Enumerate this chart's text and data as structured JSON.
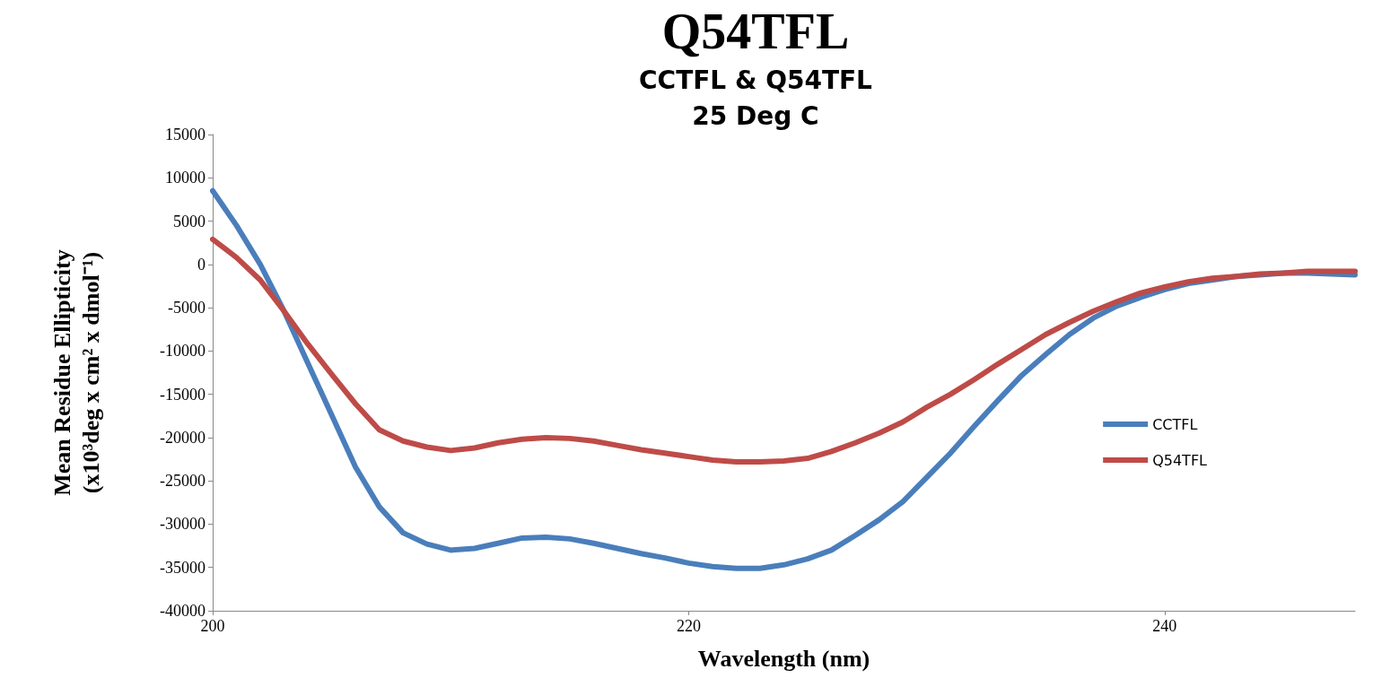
{
  "chart_data": {
    "type": "line",
    "title": "Q54TFL",
    "subtitle": "CCTFL & Q54TFL\n25 Deg C",
    "xlabel": "Wavelength (nm)",
    "ylabel": "Mean Residue Ellipticity\n(x10³deg x cm² x dmol⁻¹)",
    "x": [
      200,
      201,
      202,
      203,
      204,
      205,
      206,
      207,
      208,
      209,
      210,
      211,
      212,
      213,
      214,
      215,
      216,
      217,
      218,
      219,
      220,
      221,
      222,
      223,
      224,
      225,
      226,
      227,
      228,
      229,
      230,
      231,
      232,
      233,
      234,
      235,
      236,
      237,
      238,
      239,
      240,
      241,
      242,
      243,
      244,
      245,
      246,
      247,
      248
    ],
    "series": [
      {
        "name": "CCTFL",
        "color": "#4a7ebb",
        "values": [
          8500,
          4500,
          0,
          -5400,
          -11400,
          -17400,
          -23400,
          -28000,
          -31000,
          -32300,
          -33000,
          -32800,
          -32200,
          -31600,
          -31500,
          -31700,
          -32200,
          -32800,
          -33400,
          -33900,
          -34500,
          -34900,
          -35100,
          -35100,
          -34700,
          -34000,
          -33000,
          -31300,
          -29500,
          -27400,
          -24600,
          -21800,
          -18700,
          -15700,
          -12800,
          -10400,
          -8100,
          -6200,
          -4800,
          -3800,
          -2900,
          -2200,
          -1800,
          -1400,
          -1200,
          -1000,
          -1000,
          -1100,
          -1200
        ]
      },
      {
        "name": "Q54TFL",
        "color": "#be4b48",
        "values": [
          2900,
          800,
          -1800,
          -5400,
          -9200,
          -12700,
          -16100,
          -19100,
          -20400,
          -21100,
          -21500,
          -21200,
          -20600,
          -20200,
          -20000,
          -20100,
          -20400,
          -20900,
          -21400,
          -21800,
          -22200,
          -22600,
          -22800,
          -22800,
          -22700,
          -22400,
          -21600,
          -20600,
          -19500,
          -18200,
          -16500,
          -15000,
          -13300,
          -11500,
          -9800,
          -8100,
          -6700,
          -5400,
          -4300,
          -3300,
          -2600,
          -2000,
          -1600,
          -1400,
          -1100,
          -1000,
          -800,
          -800,
          -800
        ]
      }
    ],
    "xlim": [
      200,
      248
    ],
    "xticks": [
      200,
      220,
      240
    ],
    "ylim": [
      -40000,
      15000
    ],
    "yticks": [
      -40000,
      -35000,
      -30000,
      -25000,
      -20000,
      -15000,
      -10000,
      -5000,
      0,
      5000,
      10000,
      15000
    ],
    "grid": false,
    "legend": "right",
    "marker": "none",
    "line_style": "solid"
  }
}
